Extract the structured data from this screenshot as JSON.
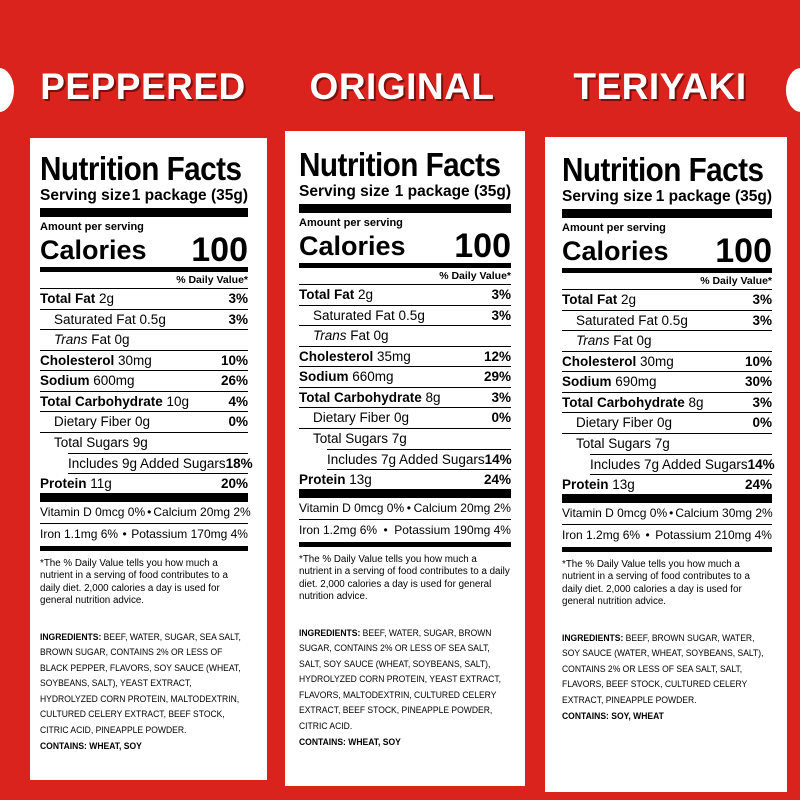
{
  "panels": [
    {
      "flavor": "PEPPERED",
      "title": "Nutrition Facts",
      "serving_label": "Serving size",
      "serving_value": "1 package (35g)",
      "amount_per_serving": "Amount per serving",
      "calories_label": "Calories",
      "calories_value": "100",
      "dv_header": "% Daily Value*",
      "total_fat_label": "Total Fat",
      "total_fat_amt": "2g",
      "total_fat_pct": "3%",
      "sat_fat_label": "Saturated Fat 0.5g",
      "sat_fat_pct": "3%",
      "trans_label": "Trans",
      "trans_rest": " Fat 0g",
      "chol_label": "Cholesterol",
      "chol_amt": "30mg",
      "chol_pct": "10%",
      "sodium_label": "Sodium",
      "sodium_amt": "600mg",
      "sodium_pct": "26%",
      "carb_label": "Total Carbohydrate",
      "carb_amt": "10g",
      "carb_pct": "4%",
      "fiber_label": "Dietary Fiber 0g",
      "fiber_pct": "0%",
      "sugars_label": "Total Sugars 9g",
      "added_label": "Includes 9g Added Sugars",
      "added_pct": "18%",
      "protein_label": "Protein",
      "protein_amt": "11g",
      "protein_pct": "20%",
      "vitd": "Vitamin D 0mcg 0%",
      "calcium": "Calcium 20mg 2%",
      "iron": "Iron 1.1mg 6%",
      "potassium": "Potassium 170mg 4%",
      "footnote": "*The % Daily Value tells you how much a nutrient in a serving of food contributes to a daily diet. 2,000 calories a day is used for general nutrition advice.",
      "ingredients_label": "INGREDIENTS:",
      "ingredients_text": " BEEF, WATER, SUGAR, SEA SALT, BROWN SUGAR, CONTAINS 2% OR LESS OF BLACK PEPPER, FLAVORS, SOY SAUCE (WHEAT, SOYBEANS, SALT), YEAST EXTRACT, HYDROLYZED CORN PROTEIN, MALTODEXTRIN, CULTURED CELERY EXTRACT, BEEF STOCK, CITRIC ACID, PINEAPPLE POWDER.",
      "contains": "CONTAINS: WHEAT, SOY"
    },
    {
      "flavor": "ORIGINAL",
      "title": "Nutrition Facts",
      "serving_label": "Serving size",
      "serving_value": "1 package (35g)",
      "amount_per_serving": "Amount per serving",
      "calories_label": "Calories",
      "calories_value": "100",
      "dv_header": "% Daily Value*",
      "total_fat_label": "Total Fat",
      "total_fat_amt": "2g",
      "total_fat_pct": "3%",
      "sat_fat_label": "Saturated Fat 0.5g",
      "sat_fat_pct": "3%",
      "trans_label": "Trans",
      "trans_rest": " Fat 0g",
      "chol_label": "Cholesterol",
      "chol_amt": "35mg",
      "chol_pct": "12%",
      "sodium_label": "Sodium",
      "sodium_amt": "660mg",
      "sodium_pct": "29%",
      "carb_label": "Total Carbohydrate",
      "carb_amt": "8g",
      "carb_pct": "3%",
      "fiber_label": "Dietary Fiber 0g",
      "fiber_pct": "0%",
      "sugars_label": "Total Sugars 7g",
      "added_label": "Includes 7g Added Sugars",
      "added_pct": "14%",
      "protein_label": "Protein",
      "protein_amt": "13g",
      "protein_pct": "24%",
      "vitd": "Vitamin D 0mcg 0%",
      "calcium": "Calcium 20mg 2%",
      "iron": "Iron 1.2mg 6%",
      "potassium": "Potassium 190mg 4%",
      "footnote": "*The % Daily Value tells you how much a nutrient in a serving of food contributes to a daily diet. 2,000 calories a day is used for general nutrition advice.",
      "ingredients_label": "INGREDIENTS:",
      "ingredients_text": " BEEF, WATER, SUGAR, BROWN SUGAR, CONTAINS 2% OR LESS OF SEA SALT, SALT, SOY SAUCE (WHEAT, SOYBEANS, SALT), HYDROLYZED CORN PROTEIN, YEAST EXTRACT, FLAVORS, MALTODEXTRIN, CULTURED CELERY EXTRACT, BEEF STOCK, PINEAPPLE POWDER, CITRIC ACID.",
      "contains": "CONTAINS: WHEAT, SOY"
    },
    {
      "flavor": "TERIYAKI",
      "title": "Nutrition Facts",
      "serving_label": "Serving size",
      "serving_value": "1 package (35g)",
      "amount_per_serving": "Amount per serving",
      "calories_label": "Calories",
      "calories_value": "100",
      "dv_header": "% Daily Value*",
      "total_fat_label": "Total Fat",
      "total_fat_amt": "2g",
      "total_fat_pct": "3%",
      "sat_fat_label": "Saturated Fat 0.5g",
      "sat_fat_pct": "3%",
      "trans_label": "Trans",
      "trans_rest": " Fat 0g",
      "chol_label": "Cholesterol",
      "chol_amt": "30mg",
      "chol_pct": "10%",
      "sodium_label": "Sodium",
      "sodium_amt": "690mg",
      "sodium_pct": "30%",
      "carb_label": "Total Carbohydrate",
      "carb_amt": "8g",
      "carb_pct": "3%",
      "fiber_label": "Dietary Fiber 0g",
      "fiber_pct": "0%",
      "sugars_label": "Total Sugars 7g",
      "added_label": "Includes 7g Added Sugars",
      "added_pct": "14%",
      "protein_label": "Protein",
      "protein_amt": "13g",
      "protein_pct": "24%",
      "vitd": "Vitamin D 0mcg 0%",
      "calcium": "Calcium 30mg 2%",
      "iron": "Iron 1.2mg 6%",
      "potassium": "Potassium 210mg 4%",
      "footnote": "*The % Daily Value tells you how much a nutrient in a serving of food contributes to a daily diet. 2,000 calories a day is used for general nutrition advice.",
      "ingredients_label": "INGREDIENTS:",
      "ingredients_text": " BEEF, BROWN SUGAR, WATER, SOY SAUCE (WATER, WHEAT, SOYBEANS, SALT), CONTAINS 2% OR LESS OF SEA SALT, SALT, FLAVORS, BEEF STOCK, CULTURED CELERY EXTRACT, PINEAPPLE POWDER.",
      "contains": "CONTAINS: SOY, WHEAT"
    }
  ],
  "colors": {
    "background": "#d9231c",
    "panel": "#ffffff",
    "text": "#000000"
  }
}
